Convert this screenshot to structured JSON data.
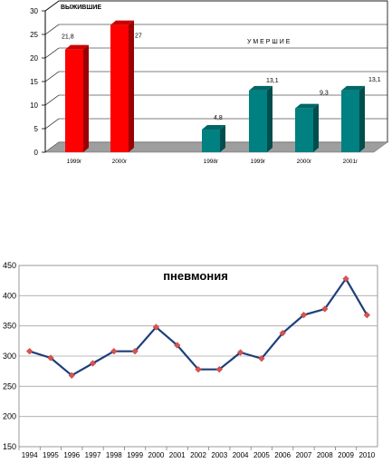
{
  "chart_data": [
    {
      "type": "bar",
      "title": "",
      "labels": {
        "survived": "ВЫЖИВШИЕ",
        "died": "У М Е Р Ш И Е"
      },
      "ylim": [
        0,
        30
      ],
      "y_ticks": [
        0,
        5,
        10,
        15,
        20,
        25,
        30
      ],
      "grid": true,
      "bars": [
        {
          "group": "survived",
          "category": "1999г",
          "value": 21.8,
          "label": "21,8",
          "color": "#ff0000"
        },
        {
          "group": "survived",
          "category": "2000г",
          "value": 27,
          "label": "27",
          "color": "#ff0000"
        },
        {
          "group": "died",
          "category": "1998г",
          "value": 4.8,
          "label": "4,8",
          "color": "#008080"
        },
        {
          "group": "died",
          "category": "1999г",
          "value": 13.1,
          "label": "13,1",
          "color": "#008080"
        },
        {
          "group": "died",
          "category": "2000г",
          "value": 9.3,
          "label": "9,3",
          "color": "#008080"
        },
        {
          "group": "died",
          "category": "2001г",
          "value": 13.1,
          "label": "13,1",
          "color": "#008080"
        }
      ]
    },
    {
      "type": "line",
      "title": "пневмония",
      "x": [
        "1994",
        "1995",
        "1996",
        "1997",
        "1998",
        "1999",
        "2000",
        "2001",
        "2002",
        "2003",
        "2004",
        "2005",
        "2006",
        "2007",
        "2008",
        "2009",
        "2010"
      ],
      "series": [
        {
          "values": [
            308,
            297,
            268,
            288,
            308,
            308,
            348,
            318,
            278,
            278,
            306,
            296,
            338,
            368,
            378,
            428,
            368
          ]
        }
      ],
      "ylim": [
        150,
        450
      ],
      "y_ticks": [
        150,
        200,
        250,
        300,
        350,
        400,
        450
      ],
      "grid": true,
      "line_color": "#1f3f7a",
      "marker_color": "#d9534f"
    }
  ]
}
